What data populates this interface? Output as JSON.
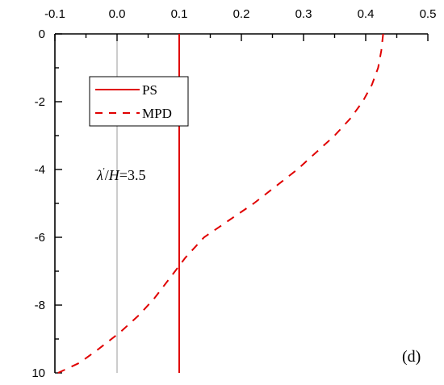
{
  "chart_data": {
    "type": "line",
    "x_axis": {
      "position": "top",
      "range": [
        -0.1,
        0.5
      ],
      "ticks": [
        -0.1,
        0.0,
        0.1,
        0.2,
        0.3,
        0.4,
        0.5
      ],
      "tick_labels": [
        "-0.1",
        "0.0",
        "0.1",
        "0.2",
        "0.3",
        "0.4",
        "0.5"
      ]
    },
    "y_axis": {
      "direction": "down",
      "range": [
        0,
        10
      ],
      "ticks": [
        0,
        2,
        4,
        6,
        8,
        10
      ],
      "tick_labels": [
        "0",
        "-2",
        "-4",
        "-6",
        "-8",
        "10"
      ]
    },
    "reference_line_x": 0.0,
    "series": [
      {
        "name": "PS",
        "style": "solid",
        "color": "#e00000",
        "points": [
          [
            0.1,
            0
          ],
          [
            0.1,
            10
          ]
        ]
      },
      {
        "name": "MPD",
        "style": "dashed",
        "color": "#e00000",
        "points": [
          [
            0.428,
            0
          ],
          [
            0.425,
            0.5
          ],
          [
            0.42,
            1
          ],
          [
            0.41,
            1.5
          ],
          [
            0.395,
            2
          ],
          [
            0.375,
            2.5
          ],
          [
            0.35,
            3
          ],
          [
            0.32,
            3.5
          ],
          [
            0.29,
            4
          ],
          [
            0.255,
            4.5
          ],
          [
            0.22,
            5
          ],
          [
            0.18,
            5.5
          ],
          [
            0.14,
            6
          ],
          [
            0.11,
            6.6
          ],
          [
            0.085,
            7.2
          ],
          [
            0.06,
            7.8
          ],
          [
            0.035,
            8.3
          ],
          [
            0.005,
            8.8
          ],
          [
            -0.03,
            9.3
          ],
          [
            -0.06,
            9.7
          ],
          [
            -0.095,
            10
          ]
        ]
      }
    ],
    "legend": {
      "placement": "top-left",
      "entries": [
        "PS",
        "MPD"
      ]
    },
    "annotations": {
      "lambda_symbol": "λ",
      "prime": "'",
      "slash": "/",
      "H": "H",
      "equals": "=3.5",
      "panel_label": "(d)"
    }
  }
}
